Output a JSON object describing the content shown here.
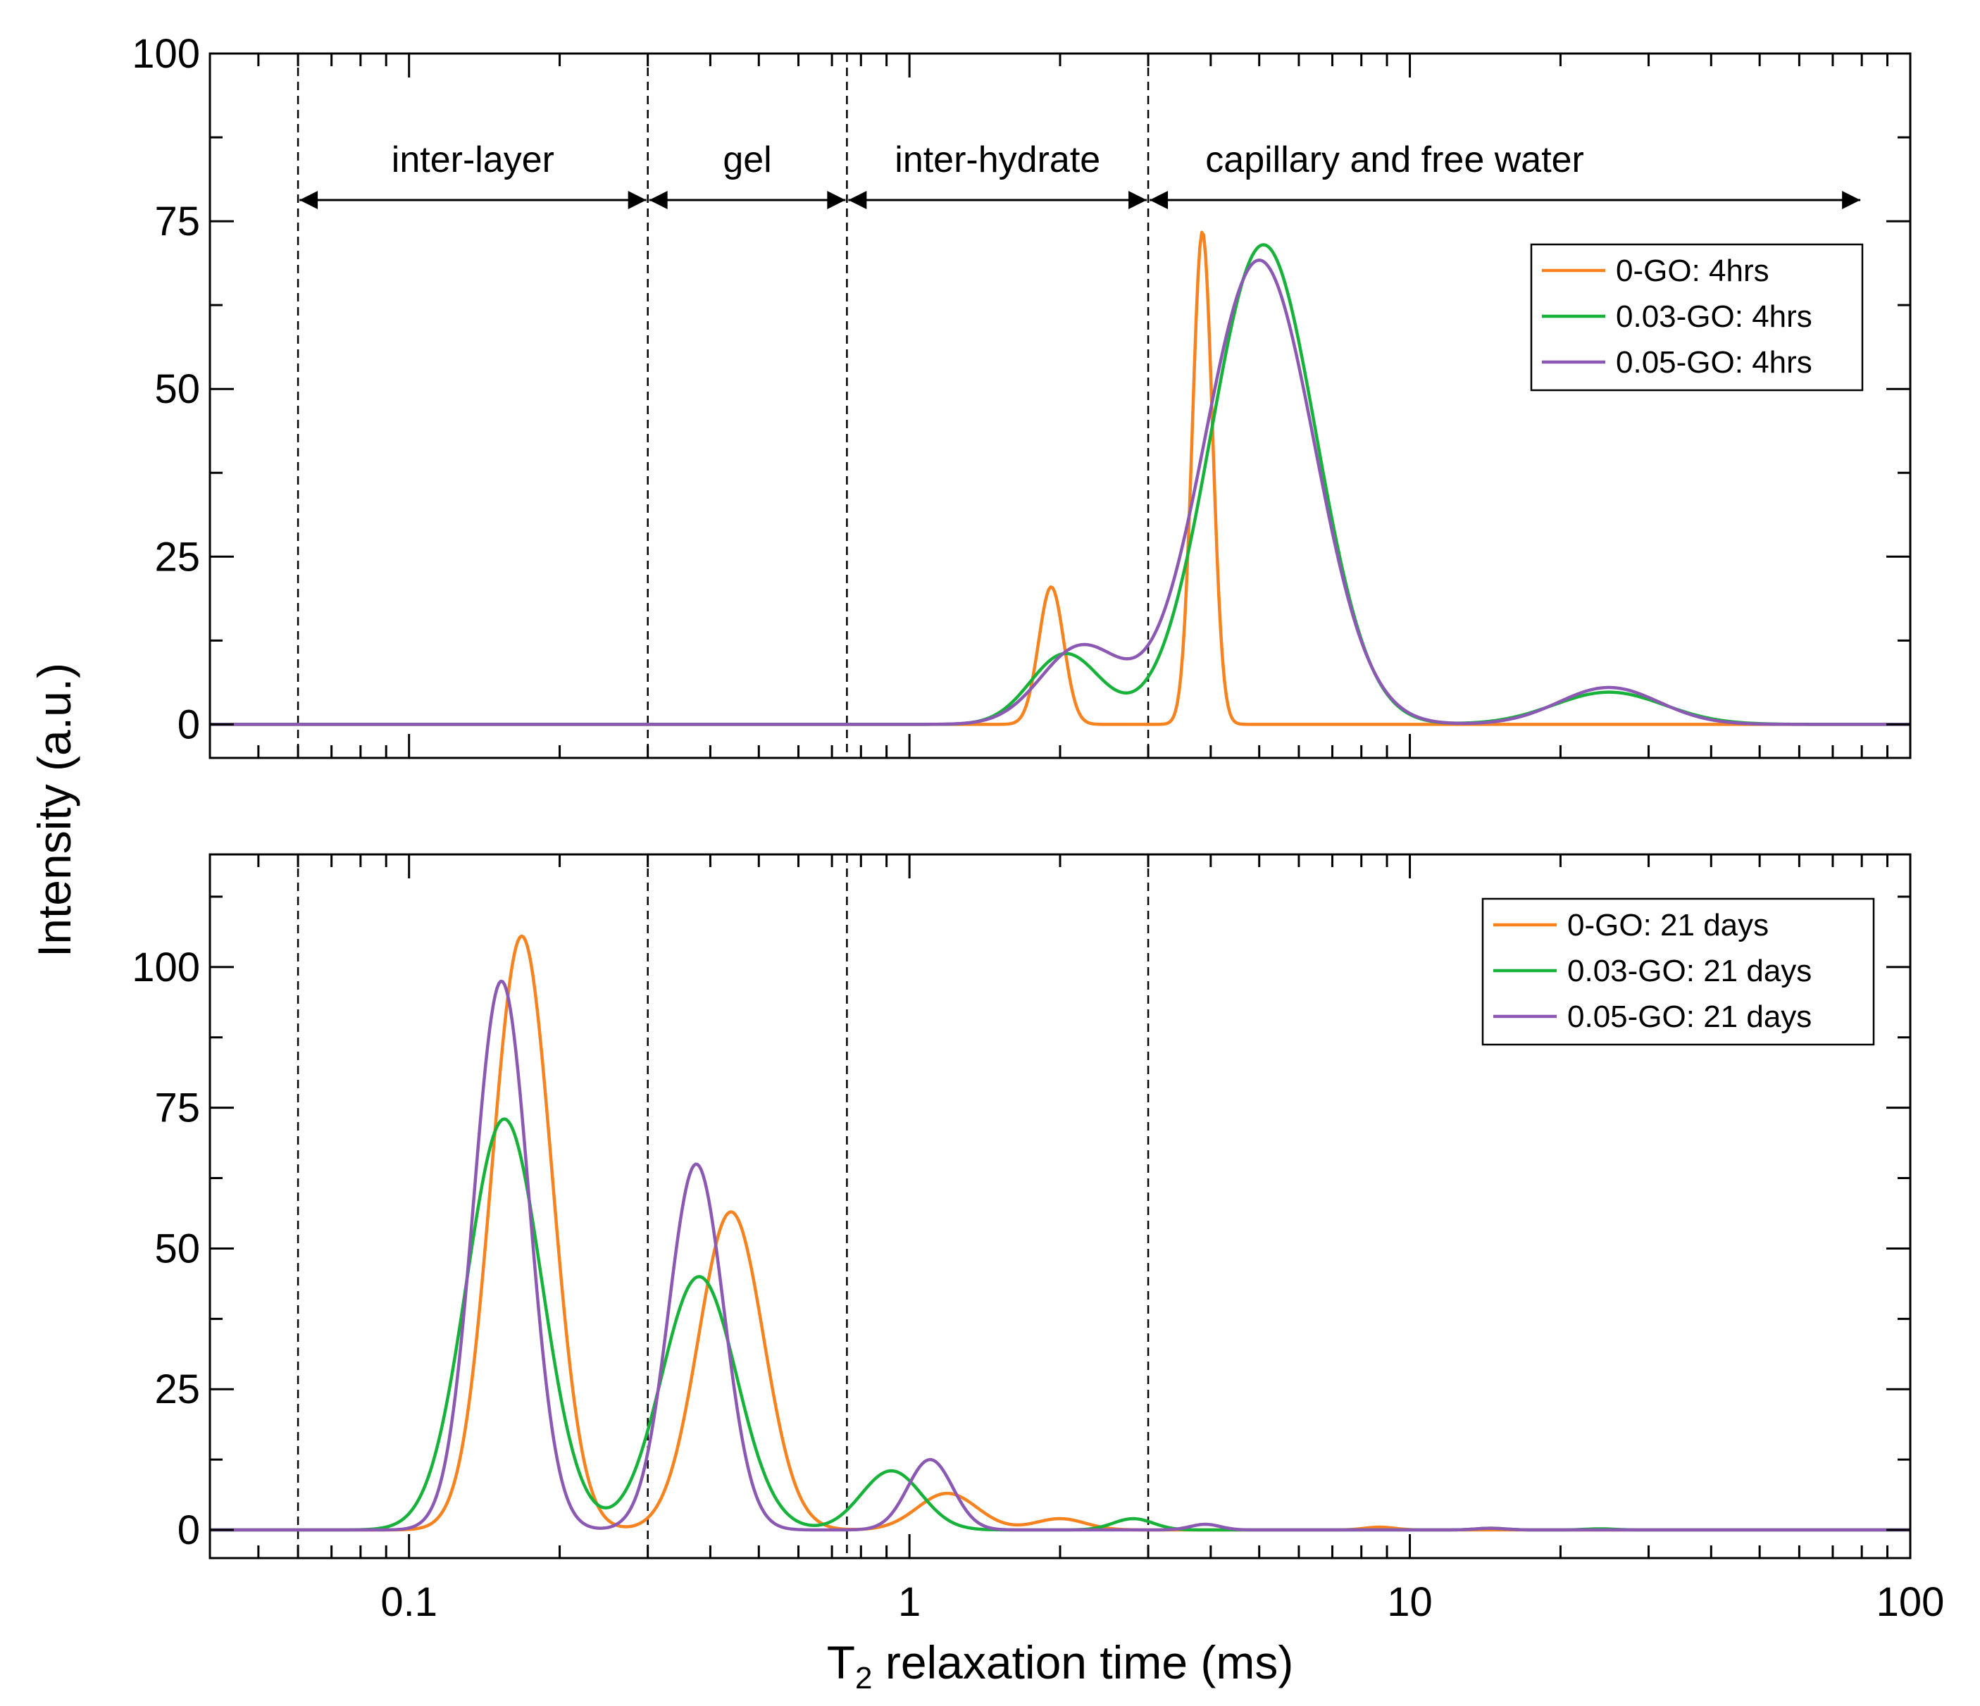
{
  "chart_data": {
    "type": "line",
    "xlabel_prefix": "T",
    "xlabel_subscript": "2",
    "xlabel_rest": " relaxation time (ms)",
    "ylabel": "Intensity (a.u.)",
    "xscale": "log",
    "xlim": [
      0.04,
      100
    ],
    "x_ticks": [
      0.1,
      1,
      10,
      100
    ],
    "x_tick_labels": [
      "0.1",
      "1",
      "10",
      "100"
    ],
    "region_boundaries": [
      0.06,
      0.3,
      0.75,
      3.0
    ],
    "regions": [
      {
        "label": "inter-layer",
        "from": 0.06,
        "to": 0.3
      },
      {
        "label": "gel",
        "from": 0.3,
        "to": 0.75
      },
      {
        "label": "inter-hydrate",
        "from": 0.75,
        "to": 3.0
      },
      {
        "label": "capillary and free water",
        "from": 3.0,
        "to": 80
      }
    ],
    "colors": {
      "0-GO": "#f7821e",
      "0.03-GO": "#17b23a",
      "0.05-GO": "#8b59b3"
    },
    "panels": [
      {
        "name": "4hrs",
        "ylim": [
          -5,
          100
        ],
        "y_ticks": [
          0,
          25,
          50,
          75,
          100
        ],
        "y_tick_labels": [
          "0",
          "25",
          "50",
          "75",
          "100"
        ],
        "show_regions": true,
        "legend_position": "top-right",
        "series": [
          {
            "name": "0-GO: 4hrs",
            "key": "0-GO",
            "peaks": [
              [
                1.92,
                20.5,
                0.025
              ],
              [
                3.85,
                73.5,
                0.02
              ]
            ]
          },
          {
            "name": "0.03-GO: 4hrs",
            "key": "0.03-GO",
            "peaks": [
              [
                2.05,
                10.5,
                0.07
              ],
              [
                5.1,
                71.5,
                0.105
              ],
              [
                25.0,
                4.8,
                0.11
              ]
            ]
          },
          {
            "name": "0.05-GO: 4hrs",
            "key": "0.05-GO",
            "peaks": [
              [
                2.2,
                11.5,
                0.08
              ],
              [
                5.0,
                69.2,
                0.11
              ],
              [
                25.0,
                5.5,
                0.1
              ]
            ]
          }
        ]
      },
      {
        "name": "21 days",
        "ylim": [
          -5,
          120
        ],
        "y_ticks": [
          0,
          25,
          50,
          75,
          100
        ],
        "y_tick_labels": [
          "0",
          "25",
          "50",
          "75",
          "100"
        ],
        "show_regions": false,
        "legend_position": "top-right",
        "series": [
          {
            "name": "0-GO: 21 days",
            "key": "0-GO",
            "peaks": [
              [
                0.168,
                105.5,
                0.06
              ],
              [
                0.44,
                56.5,
                0.065
              ],
              [
                1.19,
                6.5,
                0.06
              ],
              [
                2.0,
                2.0,
                0.05
              ],
              [
                8.7,
                0.5,
                0.03
              ]
            ]
          },
          {
            "name": "0.03-GO: 21 days",
            "key": "0.03-GO",
            "peaks": [
              [
                0.155,
                73.0,
                0.075
              ],
              [
                0.38,
                45.0,
                0.075
              ],
              [
                0.92,
                10.5,
                0.06
              ],
              [
                2.8,
                2.0,
                0.04
              ],
              [
                14.5,
                0.3,
                0.03
              ],
              [
                24.0,
                0.2,
                0.03
              ]
            ]
          },
          {
            "name": "0.05-GO: 21 days",
            "key": "0.05-GO",
            "peaks": [
              [
                0.153,
                97.5,
                0.055
              ],
              [
                0.375,
                65.0,
                0.055
              ],
              [
                1.1,
                12.5,
                0.045
              ],
              [
                3.9,
                1.0,
                0.03
              ],
              [
                14.5,
                0.3,
                0.03
              ]
            ]
          }
        ]
      }
    ]
  }
}
